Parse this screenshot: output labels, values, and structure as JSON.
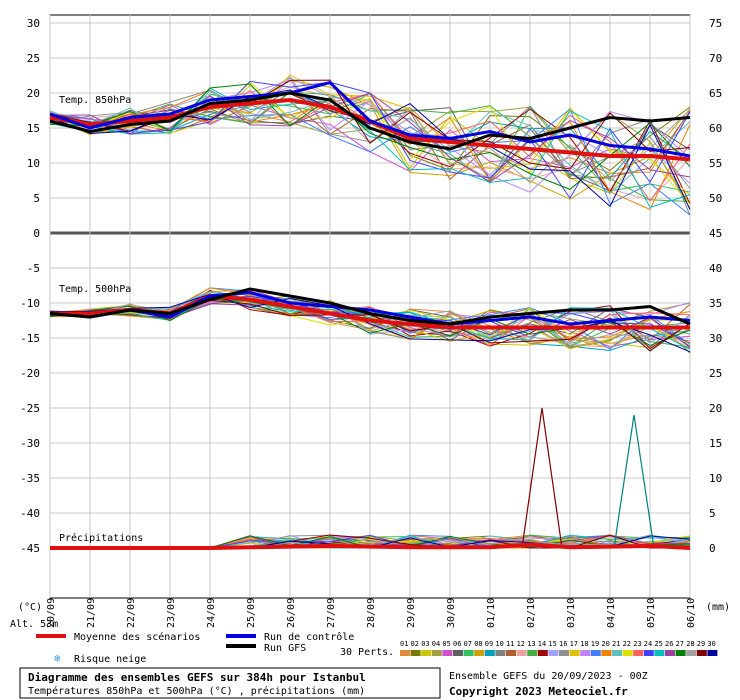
{
  "chart_data": {
    "type": "line",
    "title": "Diagramme des ensembles GEFS sur 384h pour Istanbul",
    "subtitle": "Températures 850hPa et 500hPa (°C) , précipitations (mm)",
    "run_info": "Ensemble GEFS du 20/09/2023 - 00Z",
    "copyright": "Copyright 2023 Meteociel.fr",
    "altitude": "Alt. 53m",
    "ylabel_left": "(°C)",
    "ylabel_right": "(mm)",
    "panel_labels": [
      "Temp. 850hPa",
      "Temp. 500hPa",
      "Précipitations"
    ],
    "x_ticks": [
      "20/09",
      "21/09",
      "22/09",
      "23/09",
      "24/09",
      "25/09",
      "26/09",
      "27/09",
      "28/09",
      "29/09",
      "30/09",
      "01/10",
      "02/10",
      "03/10",
      "04/10",
      "05/10",
      "06/10"
    ],
    "y_left_ticks": [
      "30",
      "25",
      "20",
      "15",
      "10",
      "5",
      "0",
      "-5",
      "-10",
      "-15",
      "-20",
      "-25",
      "-30",
      "-35",
      "-40",
      "-45"
    ],
    "y_right_ticks": [
      "75",
      "70",
      "65",
      "60",
      "55",
      "50",
      "45",
      "40",
      "35",
      "30",
      "25",
      "20",
      "15",
      "10",
      "5",
      "0"
    ],
    "ylim_left": [
      -45,
      30
    ],
    "grid": true,
    "legend": {
      "mean": "Moyenne des scénarios",
      "control": "Run de contrôle",
      "gfs": "Run GFS",
      "snow": "Risque neige",
      "perts_label": "30 Perts.",
      "pert_ids": [
        "01",
        "02",
        "03",
        "04",
        "05",
        "06",
        "07",
        "08",
        "09",
        "10",
        "11",
        "12",
        "13",
        "14",
        "15",
        "16",
        "17",
        "18",
        "19",
        "20",
        "21",
        "22",
        "23",
        "24",
        "25",
        "26",
        "27",
        "28",
        "29",
        "30"
      ],
      "pert_colors": [
        "#e08a3a",
        "#7a7a00",
        "#c8c800",
        "#a0a040",
        "#d050d0",
        "#606060",
        "#30c060",
        "#d0a000",
        "#00a0c0",
        "#808080",
        "#b06030",
        "#f0a0a0",
        "#40b040",
        "#a00000",
        "#a0a0ff",
        "#909090",
        "#e0c000",
        "#c080ff",
        "#4080ff",
        "#f08000",
        "#60c0c0",
        "#e0e000",
        "#ff6060",
        "#4040ff",
        "#00c0c0",
        "#a040a0",
        "#008000",
        "#a0a0a0",
        "#800000",
        "#0000a0"
      ]
    },
    "series": [
      {
        "name": "Moyenne des scénarios",
        "color": "#e01010",
        "panel": "850",
        "values": [
          16.5,
          15.5,
          16,
          16.5,
          18,
          18.5,
          19,
          18,
          16,
          13.5,
          13,
          12.5,
          12,
          11.5,
          11,
          11,
          10.5
        ]
      },
      {
        "name": "Run de contrôle",
        "color": "#0000e0",
        "panel": "850",
        "values": [
          17,
          15,
          16.5,
          17,
          19,
          19.5,
          20,
          21.5,
          16,
          14,
          13.5,
          14.5,
          13,
          14,
          12.5,
          12,
          11
        ]
      },
      {
        "name": "Run GFS",
        "color": "#000000",
        "panel": "850",
        "values": [
          16,
          14.5,
          15.5,
          16,
          18.5,
          19,
          20,
          19,
          15,
          13,
          12,
          14,
          13.5,
          15,
          16.5,
          16,
          16.5
        ]
      },
      {
        "name": "Moyenne des scénarios",
        "color": "#e01010",
        "panel": "500",
        "values": [
          -11.5,
          -11.5,
          -11,
          -11.5,
          -9,
          -9.5,
          -10.5,
          -11.5,
          -12.5,
          -13,
          -13.5,
          -13.5,
          -13.5,
          -13.5,
          -13.5,
          -13.5,
          -13.5
        ]
      },
      {
        "name": "Run de contrôle",
        "color": "#0000e0",
        "panel": "500",
        "values": [
          -11.5,
          -12,
          -11,
          -12,
          -9,
          -8.5,
          -10,
          -10.5,
          -11,
          -12,
          -13,
          -12.5,
          -12,
          -13,
          -12.5,
          -12,
          -12.5
        ]
      },
      {
        "name": "Run GFS",
        "color": "#000000",
        "panel": "500",
        "values": [
          -11.5,
          -12,
          -11,
          -11.5,
          -9.5,
          -8,
          -9,
          -10,
          -11.5,
          -12.5,
          -13,
          -12,
          -11.5,
          -11,
          -11,
          -10.5,
          -13
        ]
      },
      {
        "name": "Moyenne des scénarios",
        "color": "#e01010",
        "panel": "precip",
        "values": [
          0,
          0,
          0,
          0,
          0,
          0.1,
          0.2,
          0.3,
          0.2,
          0.1,
          0.1,
          0.1,
          0.5,
          0.1,
          0.2,
          0.3,
          0
        ]
      }
    ],
    "precip_peaks": [
      {
        "x_index": 12.3,
        "value": 20,
        "color": "#800000"
      },
      {
        "x_index": 14.6,
        "value": 19,
        "color": "#008080"
      }
    ]
  }
}
